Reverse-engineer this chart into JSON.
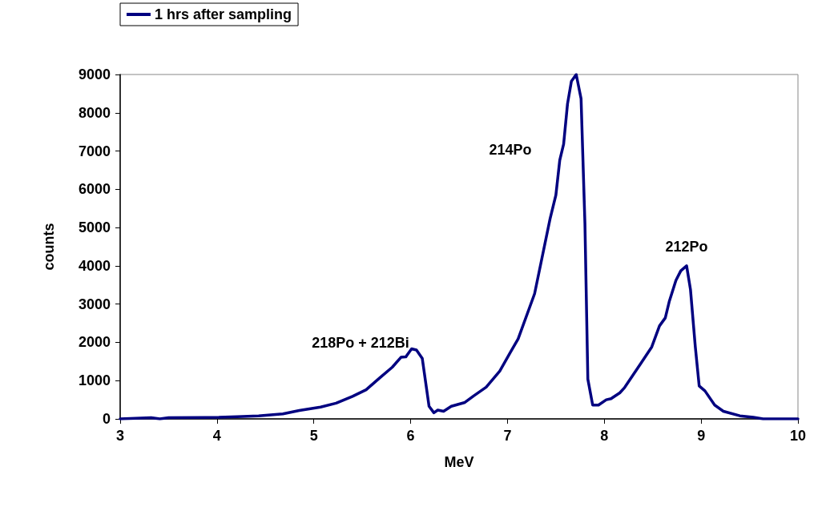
{
  "chart_data": {
    "type": "line",
    "xlabel": "MeV",
    "ylabel": "counts",
    "xlim": [
      3,
      10
    ],
    "xticks": [
      3,
      4,
      5,
      6,
      7,
      8,
      9,
      10
    ],
    "ylim": [
      0,
      9000
    ],
    "yticks": [
      0,
      1000,
      2000,
      3000,
      4000,
      5000,
      6000,
      7000,
      8000,
      9000
    ],
    "grid": false,
    "legend": "top left",
    "marker": "none",
    "line_style": "solid",
    "annotations": [
      "218Po + 212Bi",
      "214Po",
      "212Po"
    ],
    "series": [
      {
        "name": "1 hrs after sampling",
        "color": "#000080",
        "x": [
          3.0,
          3.32,
          3.41,
          3.5,
          4.02,
          4.21,
          4.43,
          4.68,
          4.85,
          5.07,
          5.23,
          5.4,
          5.54,
          5.68,
          5.81,
          5.9,
          5.95,
          6.01,
          6.06,
          6.12,
          6.19,
          6.24,
          6.28,
          6.34,
          6.42,
          6.56,
          6.65,
          6.78,
          6.92,
          7.03,
          7.11,
          7.28,
          7.44,
          7.5,
          7.54,
          7.58,
          7.62,
          7.66,
          7.71,
          7.76,
          7.8,
          7.83,
          7.88,
          7.94,
          8.02,
          8.07,
          8.16,
          8.21,
          8.38,
          8.49,
          8.57,
          8.63,
          8.67,
          8.74,
          8.79,
          8.85,
          8.89,
          8.94,
          8.98,
          9.04,
          9.14,
          9.23,
          9.4,
          9.54,
          9.64,
          10.0
        ],
        "values": [
          0,
          30,
          0,
          30,
          40,
          60,
          80,
          130,
          220,
          310,
          410,
          590,
          760,
          1070,
          1350,
          1610,
          1620,
          1830,
          1800,
          1580,
          330,
          160,
          230,
          200,
          330,
          430,
          600,
          830,
          1250,
          1740,
          2090,
          3270,
          5230,
          5850,
          6760,
          7180,
          8230,
          8820,
          9000,
          8370,
          5090,
          1040,
          360,
          360,
          500,
          530,
          680,
          820,
          1460,
          1880,
          2430,
          2640,
          3060,
          3620,
          3870,
          4000,
          3380,
          1880,
          860,
          730,
          360,
          200,
          80,
          40,
          0,
          0
        ]
      }
    ]
  }
}
